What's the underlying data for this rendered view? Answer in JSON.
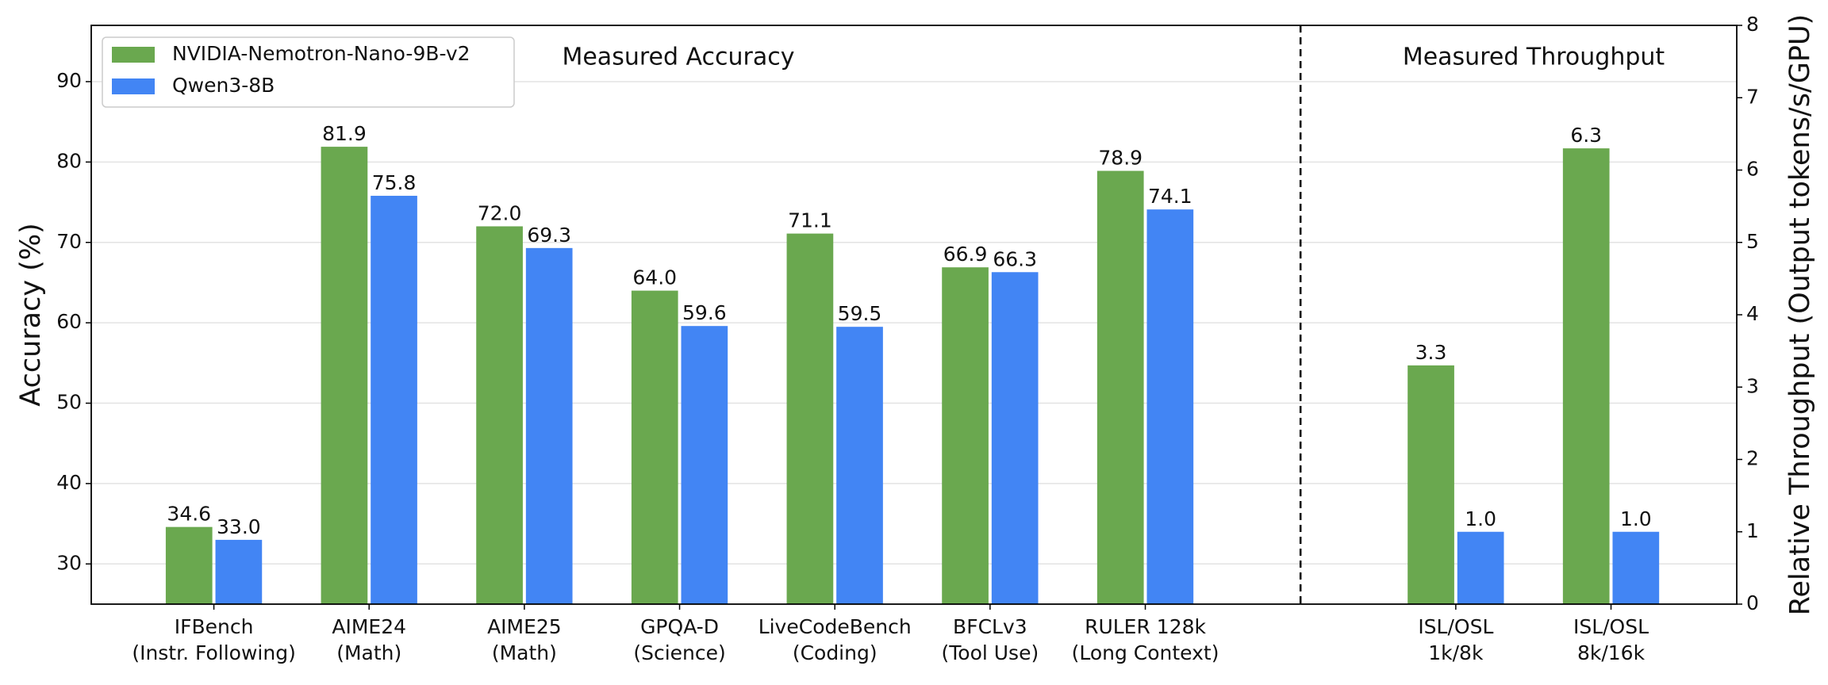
{
  "chart_data": [
    {
      "type": "bar",
      "title": "Measured Accuracy",
      "y_label": "Accuracy (%)",
      "categories": [
        [
          "IFBench",
          "(Instr. Following)"
        ],
        [
          "AIME24",
          "(Math)"
        ],
        [
          "AIME25",
          "(Math)"
        ],
        [
          "GPQA-D",
          "(Science)"
        ],
        [
          "LiveCodeBench",
          "(Coding)"
        ],
        [
          "BFCLv3",
          "(Tool Use)"
        ],
        [
          "RULER 128k",
          "(Long Context)"
        ]
      ],
      "series": [
        {
          "name": "NVIDIA-Nemotron-Nano-9B-v2",
          "color": "#6aa84f",
          "values": [
            34.6,
            81.9,
            72.0,
            64.0,
            71.1,
            66.9,
            78.9
          ],
          "value_labels": [
            "34.6",
            "81.9",
            "72.0",
            "64.0",
            "71.1",
            "66.9",
            "78.9"
          ]
        },
        {
          "name": "Qwen3-8B",
          "color": "#4285f4",
          "values": [
            33.0,
            75.8,
            69.3,
            59.6,
            59.5,
            66.3,
            74.1
          ],
          "value_labels": [
            "33.0",
            "75.8",
            "69.3",
            "59.6",
            "59.5",
            "66.3",
            "74.1"
          ]
        }
      ],
      "ylim": [
        25,
        97
      ],
      "yticks": [
        30,
        40,
        50,
        60,
        70,
        80,
        90
      ],
      "grid": true,
      "legend": "upper left"
    },
    {
      "type": "bar",
      "title": "Measured Throughput",
      "y2_label": "Relative Throughput (Output tokens/s/GPU)",
      "categories": [
        [
          "ISL/OSL",
          "1k/8k"
        ],
        [
          "ISL/OSL",
          "8k/16k"
        ]
      ],
      "series": [
        {
          "color": "#6aa84f",
          "axis": "y2",
          "values": [
            3.3,
            6.3
          ],
          "value_labels": [
            "3.3",
            "6.3"
          ]
        },
        {
          "color": "#4285f4",
          "axis": "y2",
          "values": [
            1.0,
            1.0
          ],
          "value_labels": [
            "1.0",
            "1.0"
          ]
        }
      ],
      "y2lim": [
        0,
        8
      ],
      "y2ticks": [
        0,
        1,
        2,
        3,
        4,
        5,
        6,
        7,
        8
      ]
    }
  ]
}
